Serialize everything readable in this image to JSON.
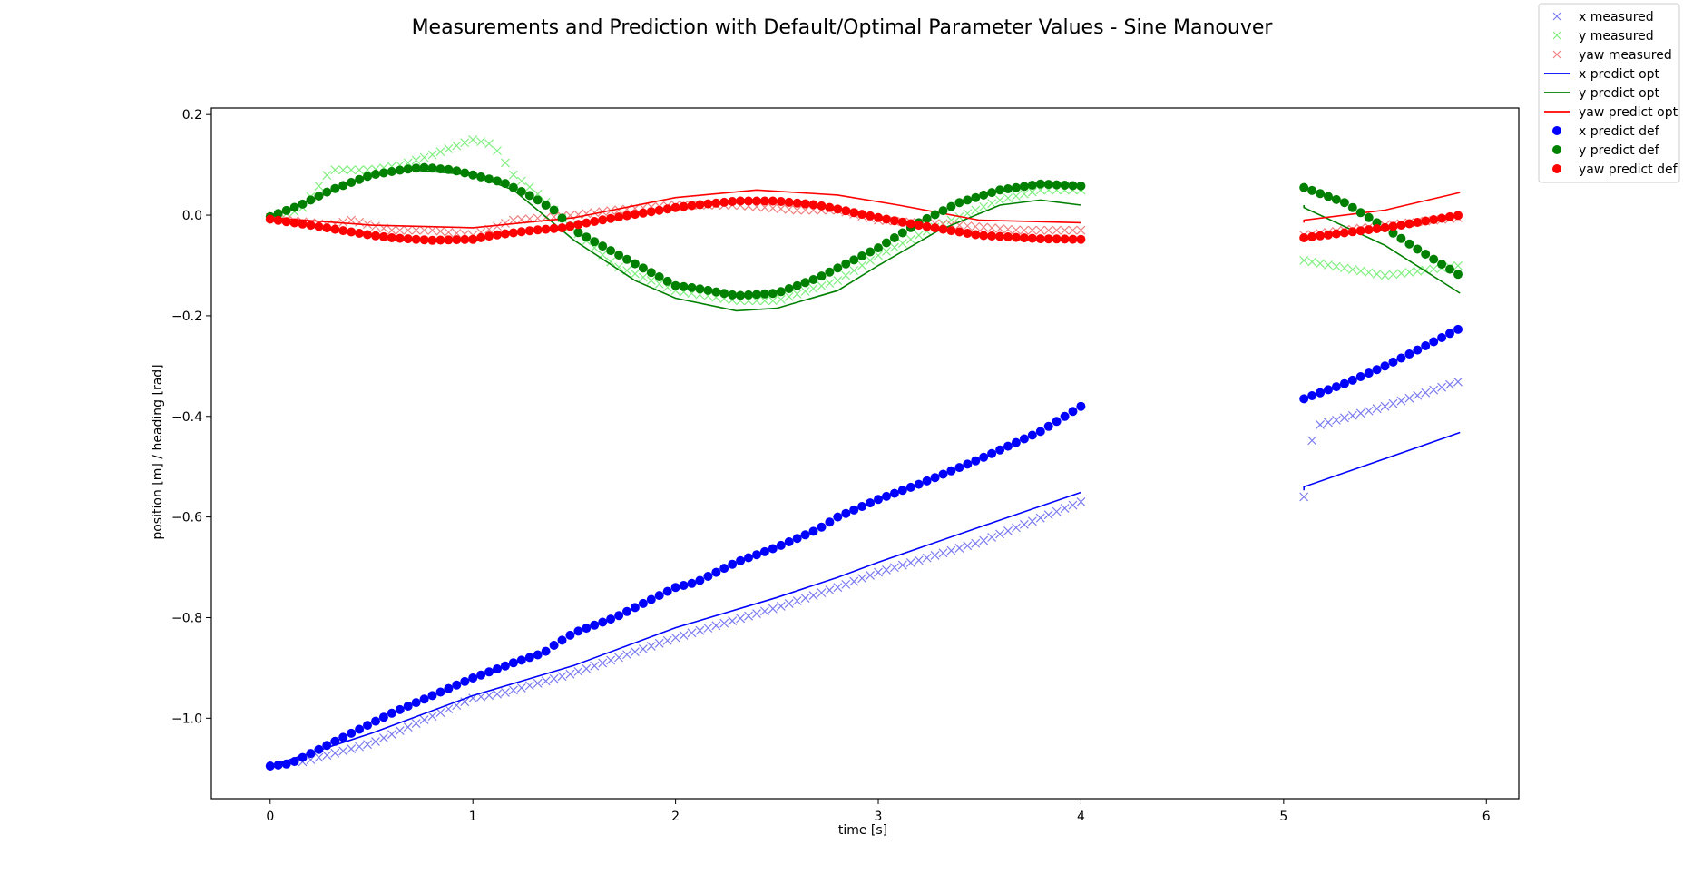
{
  "chart_data": {
    "type": "line",
    "title": "Measurements and Prediction with Default/Optimal Parameter Values - Sine Manouver",
    "xlabel": "time [s]",
    "ylabel": "position [m] / heading [rad]",
    "xlim": [
      -0.29,
      6.16
    ],
    "ylim": [
      -1.16,
      0.213
    ],
    "xticks": [
      0,
      1,
      2,
      3,
      4,
      5,
      6
    ],
    "yticks": [
      0.2,
      0.0,
      -0.2,
      -0.4,
      -0.6,
      -0.8,
      -1.0
    ],
    "ytick_labels": [
      "0.2",
      "0.0",
      "−0.2",
      "−0.4",
      "−0.6",
      "−0.8",
      "−1.0"
    ],
    "grid": false,
    "legend_position": "top-right, outside axes",
    "colors": {
      "x_measured": "#7b7bf2",
      "y_measured": "#80f080",
      "yaw_measured": "#f08080",
      "x_opt": "#0000ff",
      "y_opt": "#008000",
      "yaw_opt": "#ff0000",
      "x_def": "#0000ff",
      "y_def": "#008000",
      "yaw_def": "#ff0000"
    },
    "legend": [
      {
        "label": "x measured",
        "marker": "x",
        "color_key": "x_measured"
      },
      {
        "label": "y measured",
        "marker": "x",
        "color_key": "y_measured"
      },
      {
        "label": "yaw measured",
        "marker": "x",
        "color_key": "yaw_measured"
      },
      {
        "label": "x predict opt",
        "marker": "line",
        "color_key": "x_opt"
      },
      {
        "label": "y predict opt",
        "marker": "line",
        "color_key": "y_opt"
      },
      {
        "label": "yaw predict opt",
        "marker": "line",
        "color_key": "yaw_opt"
      },
      {
        "label": "x predict def",
        "marker": "dot",
        "color_key": "x_def"
      },
      {
        "label": "y predict def",
        "marker": "dot",
        "color_key": "y_def"
      },
      {
        "label": "yaw predict def",
        "marker": "dot",
        "color_key": "yaw_def"
      }
    ],
    "segments": [
      [
        0,
        4.0
      ],
      [
        5.1,
        5.87
      ]
    ],
    "series": [
      {
        "name": "x measured",
        "style": "x",
        "color_key": "x_measured",
        "points": [
          [
            0.13,
            -1.09
          ],
          [
            0.5,
            -1.05
          ],
          [
            1.0,
            -0.96
          ],
          [
            1.15,
            -0.95
          ],
          [
            1.5,
            -0.91
          ],
          [
            2.0,
            -0.84
          ],
          [
            2.25,
            -0.81
          ],
          [
            2.5,
            -0.78
          ],
          [
            2.8,
            -0.74
          ],
          [
            3.0,
            -0.71
          ],
          [
            3.5,
            -0.65
          ],
          [
            4.0,
            -0.57
          ],
          [
            5.1,
            -0.56
          ],
          [
            5.15,
            -0.42
          ],
          [
            5.5,
            -0.38
          ],
          [
            5.87,
            -0.33
          ]
        ]
      },
      {
        "name": "y measured",
        "style": "x",
        "color_key": "y_measured",
        "points": [
          [
            0.0,
            -0.005
          ],
          [
            0.15,
            0.01
          ],
          [
            0.3,
            0.09
          ],
          [
            0.5,
            0.09
          ],
          [
            0.65,
            0.1
          ],
          [
            0.8,
            0.12
          ],
          [
            1.0,
            0.15
          ],
          [
            1.1,
            0.14
          ],
          [
            1.2,
            0.08
          ],
          [
            1.3,
            0.05
          ],
          [
            1.5,
            -0.03
          ],
          [
            1.7,
            -0.1
          ],
          [
            2.0,
            -0.15
          ],
          [
            2.3,
            -0.17
          ],
          [
            2.5,
            -0.17
          ],
          [
            2.8,
            -0.13
          ],
          [
            3.0,
            -0.08
          ],
          [
            3.3,
            -0.02
          ],
          [
            3.6,
            0.03
          ],
          [
            3.8,
            0.05
          ],
          [
            4.0,
            0.05
          ],
          [
            5.1,
            -0.09
          ],
          [
            5.5,
            -0.12
          ],
          [
            5.87,
            -0.1
          ]
        ]
      },
      {
        "name": "yaw measured",
        "style": "x",
        "color_key": "yaw_measured",
        "points": [
          [
            0.0,
            -0.005
          ],
          [
            0.3,
            -0.02
          ],
          [
            0.4,
            -0.01
          ],
          [
            0.6,
            -0.03
          ],
          [
            0.8,
            -0.03
          ],
          [
            1.0,
            -0.04
          ],
          [
            1.2,
            -0.01
          ],
          [
            1.5,
            0.0
          ],
          [
            1.7,
            0.01
          ],
          [
            2.0,
            0.02
          ],
          [
            2.3,
            0.02
          ],
          [
            2.6,
            0.01
          ],
          [
            2.8,
            0.01
          ],
          [
            3.0,
            -0.01
          ],
          [
            3.4,
            -0.02
          ],
          [
            3.7,
            -0.03
          ],
          [
            4.0,
            -0.03
          ],
          [
            5.1,
            -0.04
          ],
          [
            5.5,
            -0.02
          ],
          [
            5.87,
            -0.005
          ]
        ]
      },
      {
        "name": "x predict opt",
        "style": "line",
        "color_key": "x_opt",
        "points": [
          [
            0.0,
            -1.095
          ],
          [
            0.5,
            -1.03
          ],
          [
            1.0,
            -0.955
          ],
          [
            1.5,
            -0.895
          ],
          [
            2.0,
            -0.82
          ],
          [
            2.5,
            -0.76
          ],
          [
            2.8,
            -0.72
          ],
          [
            3.0,
            -0.69
          ],
          [
            3.5,
            -0.62
          ],
          [
            4.0,
            -0.551
          ],
          [
            5.1,
            -0.547
          ],
          [
            5.1,
            -0.54
          ],
          [
            5.6,
            -0.47
          ],
          [
            5.87,
            -0.432
          ]
        ]
      },
      {
        "name": "y predict opt",
        "style": "line",
        "color_key": "y_opt",
        "points": [
          [
            0.0,
            -0.005
          ],
          [
            0.2,
            0.03
          ],
          [
            0.5,
            0.08
          ],
          [
            0.7,
            0.09
          ],
          [
            1.0,
            0.08
          ],
          [
            1.2,
            0.05
          ],
          [
            1.5,
            -0.05
          ],
          [
            1.8,
            -0.13
          ],
          [
            2.0,
            -0.165
          ],
          [
            2.3,
            -0.19
          ],
          [
            2.5,
            -0.185
          ],
          [
            2.8,
            -0.15
          ],
          [
            3.0,
            -0.1
          ],
          [
            3.3,
            -0.03
          ],
          [
            3.6,
            0.02
          ],
          [
            3.8,
            0.03
          ],
          [
            4.0,
            0.02
          ],
          [
            5.1,
            0.02
          ],
          [
            5.1,
            0.015
          ],
          [
            5.5,
            -0.06
          ],
          [
            5.87,
            -0.155
          ]
        ]
      },
      {
        "name": "yaw predict opt",
        "style": "line",
        "color_key": "yaw_opt",
        "points": [
          [
            0.0,
            -0.005
          ],
          [
            0.5,
            -0.02
          ],
          [
            1.0,
            -0.025
          ],
          [
            1.5,
            -0.005
          ],
          [
            2.0,
            0.035
          ],
          [
            2.4,
            0.05
          ],
          [
            2.8,
            0.04
          ],
          [
            3.1,
            0.02
          ],
          [
            3.5,
            -0.01
          ],
          [
            4.0,
            -0.015
          ],
          [
            5.1,
            -0.015
          ],
          [
            5.1,
            -0.01
          ],
          [
            5.5,
            0.01
          ],
          [
            5.87,
            0.045
          ]
        ]
      },
      {
        "name": "x predict def",
        "style": "dot",
        "color_key": "x_def",
        "points": [
          [
            0.0,
            -1.095
          ],
          [
            0.1,
            -1.09
          ],
          [
            0.3,
            -1.05
          ],
          [
            0.5,
            -1.01
          ],
          [
            0.6,
            -0.99
          ],
          [
            0.8,
            -0.955
          ],
          [
            1.0,
            -0.92
          ],
          [
            1.2,
            -0.89
          ],
          [
            1.35,
            -0.87
          ],
          [
            1.4,
            -0.855
          ],
          [
            1.5,
            -0.83
          ],
          [
            1.7,
            -0.8
          ],
          [
            2.0,
            -0.74
          ],
          [
            2.1,
            -0.73
          ],
          [
            2.3,
            -0.69
          ],
          [
            2.5,
            -0.66
          ],
          [
            2.7,
            -0.625
          ],
          [
            2.8,
            -0.6
          ],
          [
            3.0,
            -0.565
          ],
          [
            3.2,
            -0.535
          ],
          [
            3.5,
            -0.485
          ],
          [
            3.8,
            -0.43
          ],
          [
            4.0,
            -0.38
          ],
          [
            5.1,
            -0.365
          ],
          [
            5.3,
            -0.335
          ],
          [
            5.5,
            -0.3
          ],
          [
            5.65,
            -0.27
          ],
          [
            5.87,
            -0.225
          ]
        ]
      },
      {
        "name": "y predict def",
        "style": "dot",
        "color_key": "y_def",
        "points": [
          [
            0.0,
            -0.003
          ],
          [
            0.15,
            0.02
          ],
          [
            0.3,
            0.05
          ],
          [
            0.5,
            0.08
          ],
          [
            0.65,
            0.09
          ],
          [
            0.75,
            0.095
          ],
          [
            0.9,
            0.09
          ],
          [
            1.0,
            0.08
          ],
          [
            1.15,
            0.065
          ],
          [
            1.3,
            0.035
          ],
          [
            1.4,
            0.01
          ],
          [
            1.5,
            -0.03
          ],
          [
            1.7,
            -0.075
          ],
          [
            2.0,
            -0.14
          ],
          [
            2.1,
            -0.145
          ],
          [
            2.3,
            -0.16
          ],
          [
            2.5,
            -0.155
          ],
          [
            2.7,
            -0.125
          ],
          [
            2.8,
            -0.105
          ],
          [
            3.0,
            -0.065
          ],
          [
            3.2,
            -0.015
          ],
          [
            3.4,
            0.025
          ],
          [
            3.6,
            0.05
          ],
          [
            3.8,
            0.062
          ],
          [
            4.0,
            0.058
          ],
          [
            5.1,
            0.055
          ],
          [
            5.3,
            0.025
          ],
          [
            5.5,
            -0.025
          ],
          [
            5.65,
            -0.065
          ],
          [
            5.87,
            -0.12
          ]
        ]
      },
      {
        "name": "yaw predict def",
        "style": "dot",
        "color_key": "yaw_def",
        "points": [
          [
            0.0,
            -0.008
          ],
          [
            0.2,
            -0.02
          ],
          [
            0.5,
            -0.04
          ],
          [
            0.6,
            -0.045
          ],
          [
            0.8,
            -0.05
          ],
          [
            1.0,
            -0.048
          ],
          [
            1.1,
            -0.04
          ],
          [
            1.3,
            -0.03
          ],
          [
            1.45,
            -0.025
          ],
          [
            1.5,
            -0.02
          ],
          [
            1.7,
            -0.005
          ],
          [
            2.0,
            0.015
          ],
          [
            2.1,
            0.02
          ],
          [
            2.3,
            0.028
          ],
          [
            2.5,
            0.028
          ],
          [
            2.7,
            0.02
          ],
          [
            2.8,
            0.012
          ],
          [
            3.0,
            -0.005
          ],
          [
            3.2,
            -0.02
          ],
          [
            3.5,
            -0.04
          ],
          [
            3.8,
            -0.047
          ],
          [
            4.0,
            -0.048
          ],
          [
            5.1,
            -0.045
          ],
          [
            5.3,
            -0.035
          ],
          [
            5.5,
            -0.025
          ],
          [
            5.65,
            -0.015
          ],
          [
            5.87,
            0.0
          ]
        ]
      }
    ]
  }
}
